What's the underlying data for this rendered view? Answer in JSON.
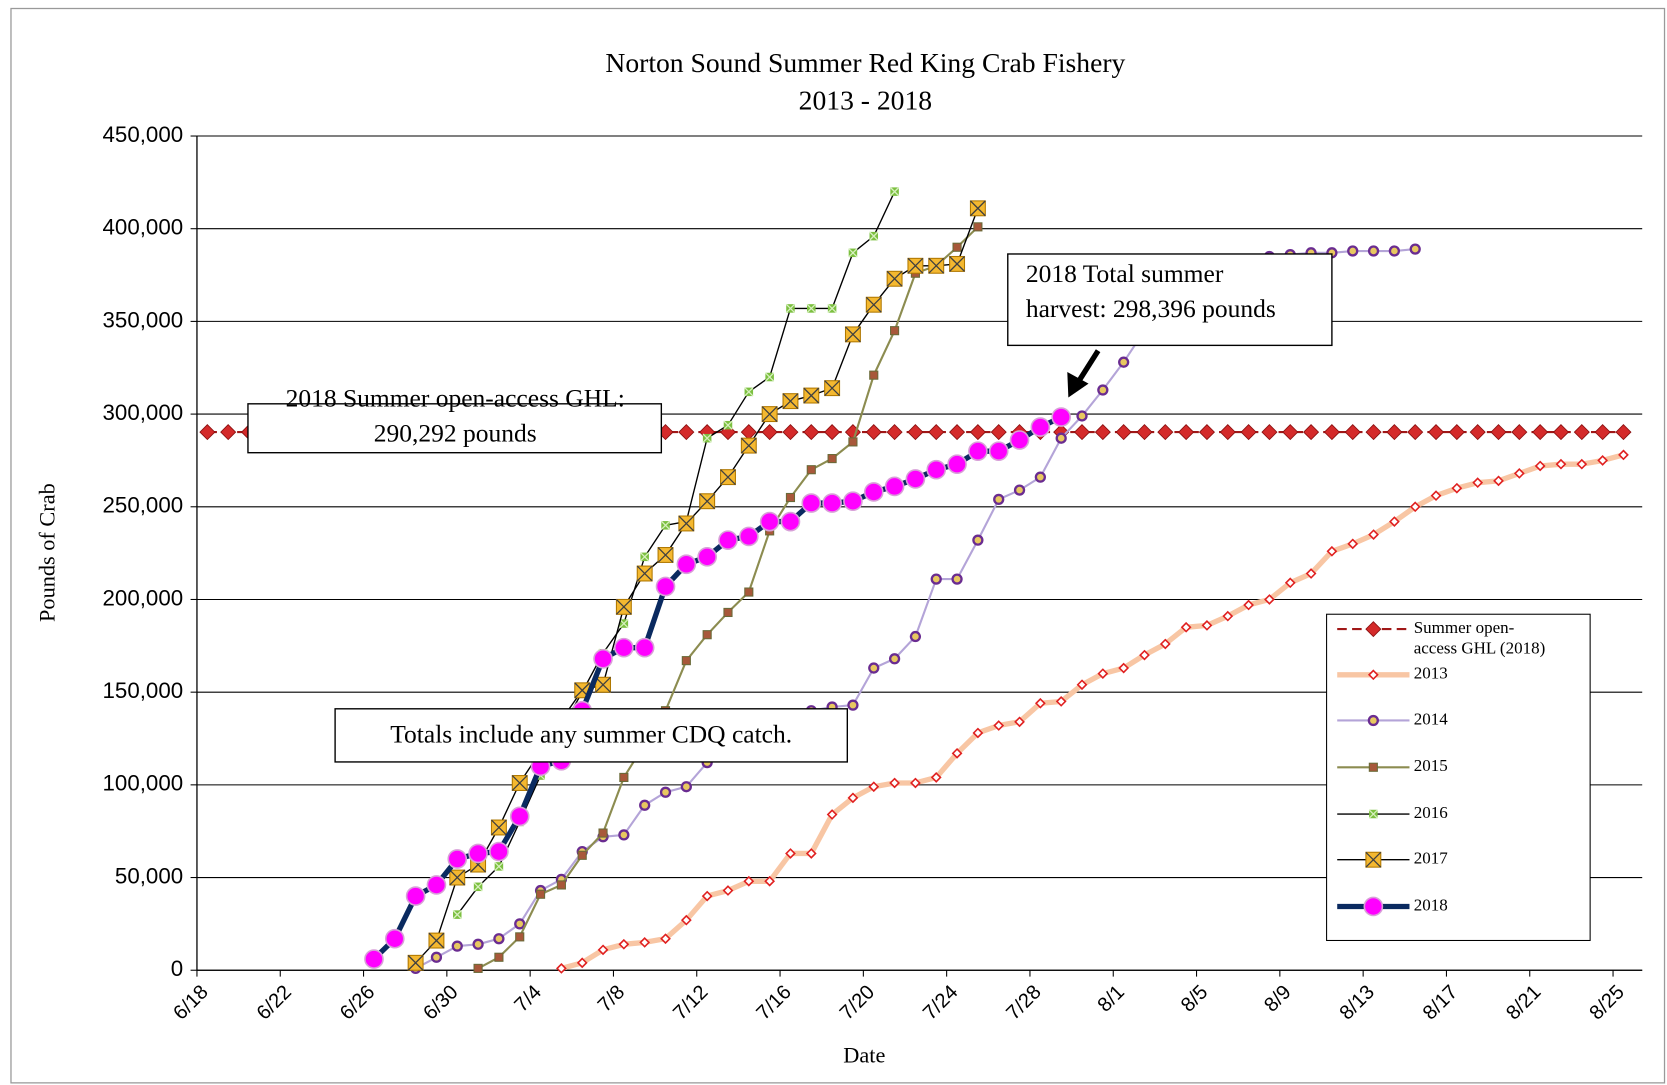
{
  "chart_data": {
    "type": "line",
    "title": "Norton Sound Summer Red King Crab Fishery",
    "subtitle": "2013 - 2018",
    "x_label": "Date",
    "y_label": "Pounds of Crab",
    "grid": true,
    "legend": "lower right",
    "ylim": [
      0,
      450000
    ],
    "yticks": [
      0,
      {
        "value": 50000,
        "label": "50,000"
      },
      {
        "value": 100000,
        "label": "100,000"
      },
      {
        "value": 150000,
        "label": "150,000"
      },
      {
        "value": 200000,
        "label": "200,000"
      },
      {
        "value": 250000,
        "label": "250,000"
      },
      {
        "value": 300000,
        "label": "300,000"
      },
      {
        "value": 350000,
        "label": "350,000"
      },
      {
        "value": 400000,
        "label": "400,000"
      },
      {
        "value": 450000,
        "label": "450,000"
      }
    ],
    "categories": [
      "6/18",
      null,
      null,
      null,
      "6/22",
      null,
      null,
      null,
      "6/26",
      null,
      null,
      null,
      "6/30",
      null,
      null,
      null,
      "7/4",
      null,
      null,
      null,
      "7/8",
      null,
      null,
      null,
      "7/12",
      null,
      null,
      null,
      "7/16",
      null,
      null,
      null,
      "7/20",
      null,
      null,
      null,
      "7/24",
      null,
      null,
      null,
      "7/28",
      null,
      null,
      null,
      "8/1",
      null,
      null,
      null,
      "8/5",
      null,
      null,
      null,
      "8/9",
      null,
      null,
      null,
      "8/13",
      null,
      null,
      null,
      "8/17",
      null,
      null,
      null,
      "8/21",
      null,
      null,
      null,
      "8/25"
    ],
    "series": [
      {
        "name": "Summer open-access GHL (2018)",
        "color": "#a01818",
        "marker": "diamond",
        "marker_color": "#d42a2a",
        "dashed": true,
        "values": [
          290292,
          290292,
          290292,
          290292,
          290292,
          290292,
          290292,
          290292,
          290292,
          290292,
          290292,
          290292,
          290292,
          290292,
          290292,
          290292,
          290292,
          290292,
          290292,
          290292,
          290292,
          290292,
          290292,
          290292,
          290292,
          290292,
          290292,
          290292,
          290292,
          290292,
          290292,
          290292,
          290292,
          290292,
          290292,
          290292,
          290292,
          290292,
          290292,
          290292,
          290292,
          290292,
          290292,
          290292,
          290292,
          290292,
          290292,
          290292,
          290292,
          290292,
          290292,
          290292,
          290292,
          290292,
          290292,
          290292,
          290292,
          290292,
          290292,
          290292,
          290292,
          290292,
          290292,
          290292,
          290292,
          290292,
          290292,
          290292,
          290292
        ]
      },
      {
        "name": "2013",
        "color": "#f8c6a4",
        "marker": "diamond-open",
        "marker_color": "#e02020",
        "values": [
          null,
          null,
          null,
          null,
          null,
          null,
          null,
          null,
          null,
          null,
          null,
          null,
          null,
          null,
          null,
          null,
          null,
          1000,
          4000,
          11000,
          14000,
          15000,
          17000,
          27000,
          40000,
          43000,
          48000,
          48000,
          63000,
          63000,
          84000,
          93000,
          99000,
          101000,
          101000,
          104000,
          117000,
          128000,
          132000,
          134000,
          144000,
          145000,
          154000,
          160000,
          163000,
          170000,
          176000,
          185000,
          186000,
          191000,
          197000,
          200000,
          209000,
          214000,
          226000,
          230000,
          235000,
          242000,
          250000,
          256000,
          260000,
          263000,
          264000,
          268000,
          272000,
          273000,
          273000,
          275000,
          278000
        ]
      },
      {
        "name": "2014",
        "color": "#b4a4d8",
        "marker": "circle-small",
        "marker_color": "#6a2c91",
        "values": [
          null,
          null,
          null,
          null,
          null,
          null,
          null,
          null,
          null,
          null,
          1000,
          7000,
          13000,
          14000,
          17000,
          25000,
          43000,
          49000,
          64000,
          72000,
          73000,
          89000,
          96000,
          99000,
          112000,
          120000,
          126000,
          131000,
          136000,
          140000,
          142000,
          143000,
          163000,
          168000,
          180000,
          211000,
          211000,
          232000,
          254000,
          259000,
          266000,
          287000,
          299000,
          313000,
          328000,
          345000,
          360000,
          370000,
          376000,
          380000,
          383000,
          385000,
          386000,
          387000,
          387000,
          388000,
          388000,
          388000,
          389000,
          null,
          null,
          null,
          null,
          null,
          null,
          null,
          null,
          null,
          null
        ]
      },
      {
        "name": "2015",
        "color": "#8c8c50",
        "marker": "square",
        "marker_color": "#a8583a",
        "values": [
          null,
          null,
          null,
          null,
          null,
          null,
          null,
          null,
          null,
          null,
          null,
          null,
          null,
          1000,
          7000,
          18000,
          41000,
          46000,
          62000,
          74000,
          104000,
          122000,
          140000,
          167000,
          181000,
          193000,
          204000,
          237000,
          255000,
          270000,
          276000,
          285000,
          321000,
          345000,
          376000,
          380000,
          390000,
          401000,
          null,
          null,
          null,
          null,
          null,
          null,
          null,
          null,
          null,
          null,
          null,
          null,
          null,
          null,
          null,
          null,
          null,
          null,
          null,
          null,
          null,
          null,
          null,
          null,
          null,
          null,
          null,
          null,
          null,
          null,
          null
        ]
      },
      {
        "name": "2016",
        "color": "#000000",
        "marker": "cross",
        "marker_color": "#7cc040",
        "values": [
          null,
          null,
          null,
          null,
          null,
          null,
          null,
          null,
          null,
          null,
          null,
          null,
          30000,
          45000,
          56000,
          80000,
          105000,
          130000,
          150000,
          171000,
          187000,
          223000,
          240000,
          242000,
          287000,
          294000,
          312000,
          320000,
          357000,
          357000,
          357000,
          387000,
          396000,
          420000,
          null,
          null,
          null,
          null,
          null,
          null,
          null,
          null,
          null,
          null,
          null,
          null,
          null,
          null,
          null,
          null,
          null,
          null,
          null,
          null,
          null,
          null,
          null,
          null,
          null,
          null,
          null,
          null,
          null,
          null,
          null,
          null,
          null,
          null,
          null
        ]
      },
      {
        "name": "2017",
        "color": "#000000",
        "marker": "square-x",
        "marker_color": "#f4b830",
        "values": [
          null,
          null,
          null,
          null,
          null,
          null,
          null,
          null,
          null,
          null,
          4000,
          16000,
          50000,
          57000,
          77000,
          101000,
          118000,
          135000,
          151000,
          154000,
          196000,
          214000,
          224000,
          241000,
          253000,
          266000,
          283000,
          300000,
          307000,
          310000,
          314000,
          343000,
          359000,
          373000,
          380000,
          380000,
          381000,
          411000,
          null,
          null,
          null,
          null,
          null,
          null,
          null,
          null,
          null,
          null,
          null,
          null,
          null,
          null,
          null,
          null,
          null,
          null,
          null,
          null,
          null,
          null,
          null,
          null,
          null,
          null,
          null,
          null,
          null,
          null,
          null
        ]
      },
      {
        "name": "2018",
        "color": "#0a2a60",
        "marker": "circle-big",
        "marker_color": "#ff00ff",
        "values": [
          null,
          null,
          null,
          null,
          null,
          null,
          null,
          null,
          6000,
          17000,
          40000,
          46000,
          60000,
          63000,
          64000,
          83000,
          110000,
          113000,
          140000,
          168000,
          174000,
          174000,
          207000,
          219000,
          223000,
          232000,
          234000,
          242000,
          242000,
          252000,
          252000,
          253000,
          258000,
          261000,
          265000,
          270000,
          273000,
          280000,
          280000,
          286000,
          293000,
          298396,
          null,
          null,
          null,
          null,
          null,
          null,
          null,
          null,
          null,
          null,
          null,
          null,
          null,
          null,
          null,
          null,
          null,
          null,
          null,
          null,
          null,
          null,
          null,
          null,
          null,
          null,
          null
        ]
      }
    ],
    "annotations": [
      {
        "lines": [
          "2018 Summer open-access GHL:",
          "290,292 pounds"
        ]
      },
      {
        "lines": [
          "2018 Total summer",
          "harvest: 298,396 pounds"
        ]
      },
      {
        "lines": [
          "Totals include any summer CDQ catch."
        ]
      }
    ]
  }
}
